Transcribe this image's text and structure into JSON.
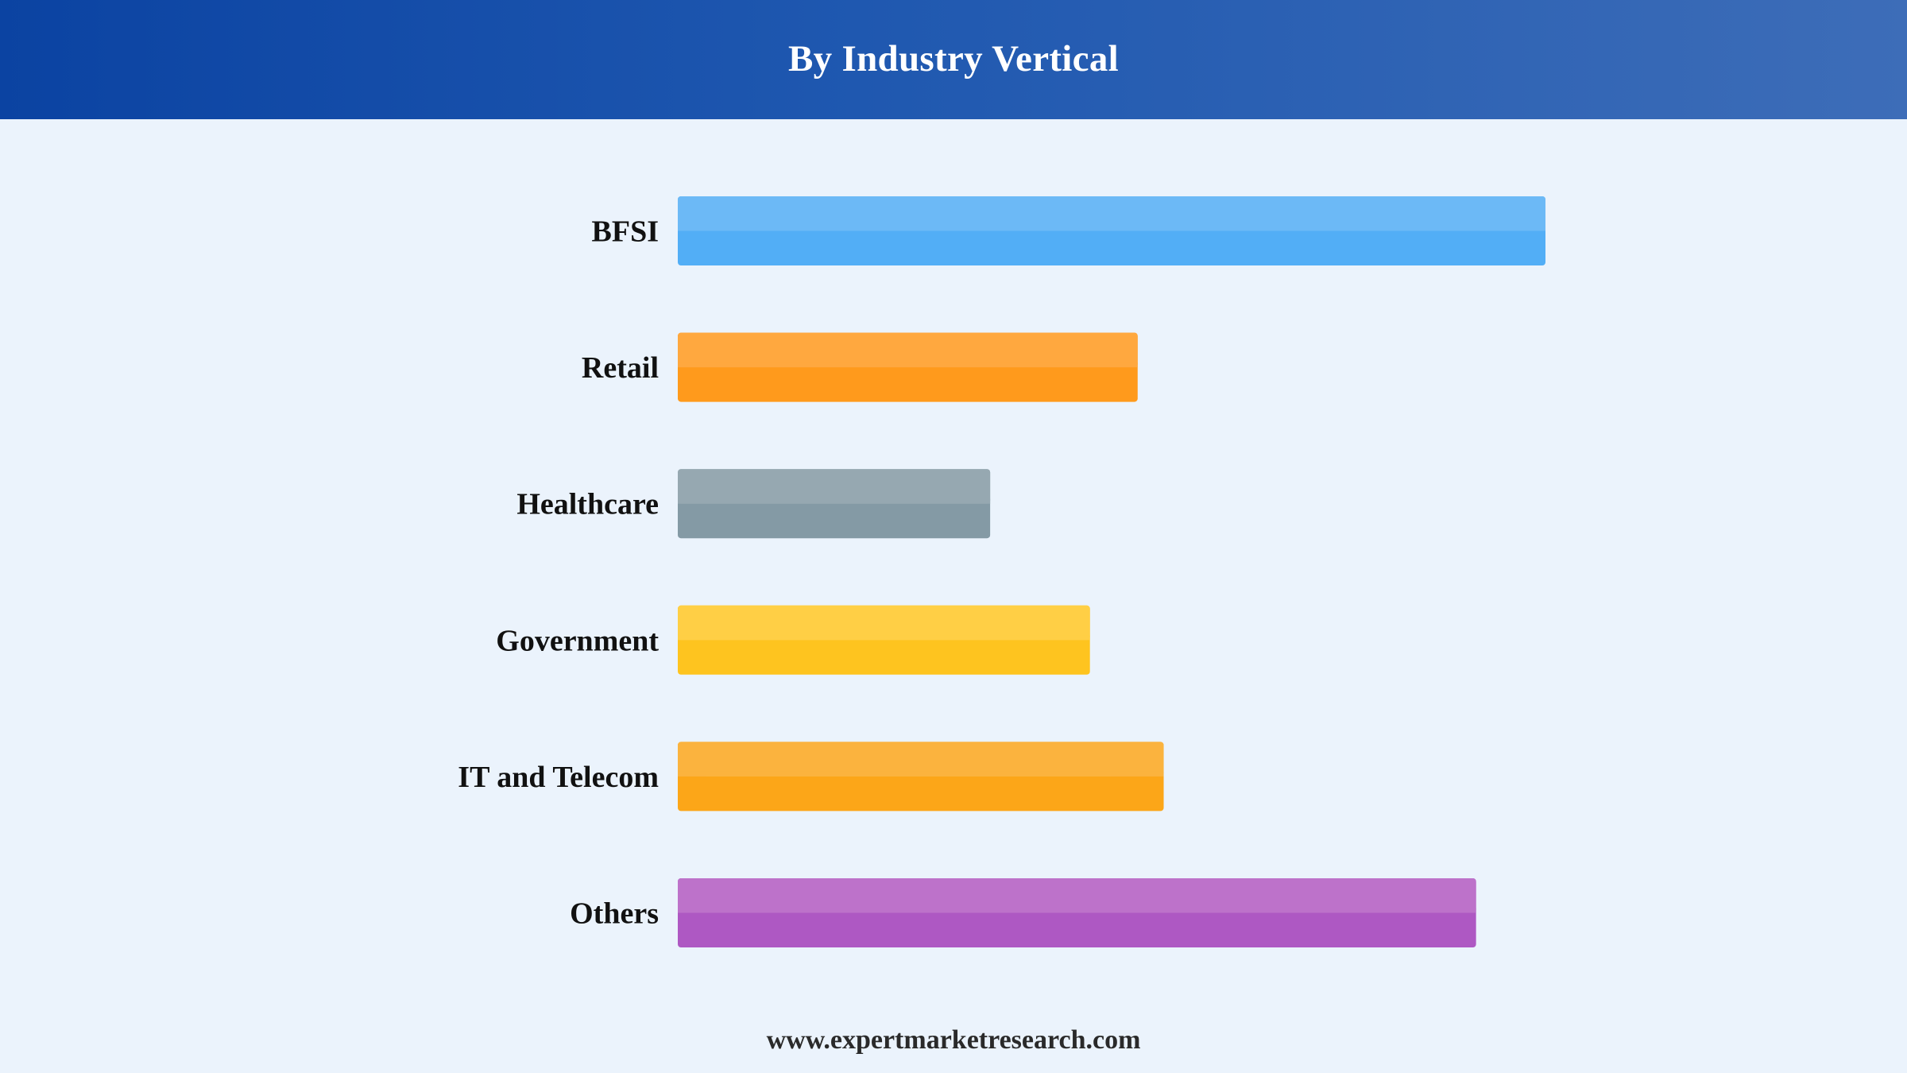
{
  "header": {
    "title": "By Industry Vertical"
  },
  "footer": {
    "website": "www.expertmarketresearch.com"
  },
  "colors": {
    "header_start": "#0b43a2",
    "header_end": "#3d6db8",
    "background": "#ebf3fc",
    "label_text": "#111111"
  },
  "chart_data": {
    "type": "bar",
    "orientation": "horizontal",
    "title": "By Industry Vertical",
    "xlabel": "",
    "ylabel": "",
    "grid": false,
    "legend": "none",
    "xlim": [
      0,
      100
    ],
    "categories": [
      "BFSI",
      "Retail",
      "Healthcare",
      "Government",
      "IT and Telecom",
      "Others"
    ],
    "values": [
      100,
      53,
      36,
      47.5,
      56,
      92
    ],
    "bar_colors": [
      "#52aef6",
      "#ff9a1c",
      "#849aa5",
      "#fec41f",
      "#fca618",
      "#ae58c3"
    ],
    "bar_highlight_colors": [
      "#6cb9f6",
      "#ffa83f",
      "#96a8b1",
      "#ffcf45",
      "#fbb33e",
      "#bd72ca"
    ]
  }
}
